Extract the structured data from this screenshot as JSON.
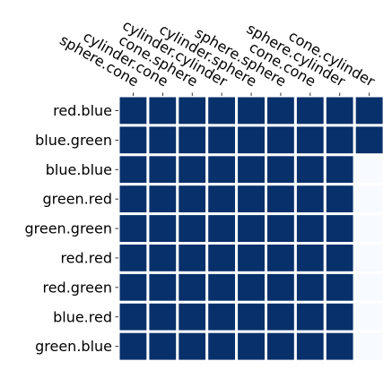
{
  "chart_data": {
    "type": "heatmap",
    "title": "",
    "xlabel": "",
    "ylabel": "",
    "x_categories": [
      "sphere.cone",
      "cylinder.cone",
      "cone.sphere",
      "cylinder.cylinder",
      "cylinder.sphere",
      "sphere.sphere",
      "cone.cone",
      "sphere.cylinder",
      "cone.cylinder"
    ],
    "y_categories": [
      "red.blue",
      "blue.green",
      "blue.blue",
      "green.red",
      "green.green",
      "red.red",
      "red.green",
      "blue.red",
      "green.blue"
    ],
    "values": [
      [
        1,
        1,
        1,
        1,
        1,
        1,
        1,
        1,
        1
      ],
      [
        1,
        1,
        1,
        1,
        1,
        1,
        1,
        1,
        1
      ],
      [
        1,
        1,
        1,
        1,
        1,
        1,
        1,
        1,
        0
      ],
      [
        1,
        1,
        1,
        1,
        1,
        1,
        1,
        1,
        0
      ],
      [
        1,
        1,
        1,
        1,
        1,
        1,
        1,
        1,
        0
      ],
      [
        1,
        1,
        1,
        1,
        1,
        1,
        1,
        1,
        0
      ],
      [
        1,
        1,
        1,
        1,
        1,
        1,
        1,
        1,
        0
      ],
      [
        1,
        1,
        1,
        1,
        1,
        1,
        1,
        1,
        0
      ],
      [
        1,
        1,
        1,
        1,
        1,
        1,
        1,
        1,
        0
      ]
    ],
    "value_range": [
      0,
      1
    ],
    "colormap": {
      "low": "#f7fbff",
      "high": "#08306b"
    },
    "grid": false,
    "cell_border_color": "#ffffff",
    "legend": "none"
  }
}
